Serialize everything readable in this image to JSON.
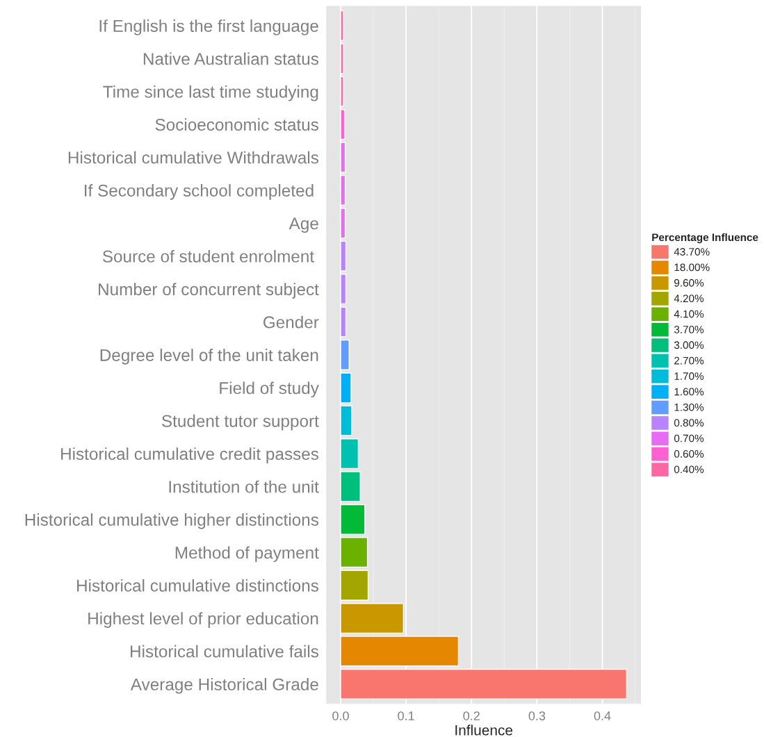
{
  "chart_data": {
    "type": "bar",
    "orientation": "horizontal",
    "xlabel": "Influence",
    "legend_title": "Percentage Influence",
    "legend": "right",
    "grid": "x",
    "categories": [
      "If English is the first language",
      "Native Australian status",
      "Time since last time studying",
      "Socioeconomic status",
      "Historical cumulative Withdrawals",
      "If Secondary school completed ",
      "Age",
      "Source of student enrolment ",
      "Number of concurrent subject",
      "Gender",
      "Degree level of the unit taken",
      "Field of study",
      "Student tutor support",
      "Historical cumulative credit passes",
      "Institution of the unit",
      "Historical cumulative higher distinctions",
      "Method of payment",
      "Historical cumulative distinctions",
      "Highest level of prior education",
      "Historical cumulative fails",
      "Average Historical Grade"
    ],
    "xlim": [
      -0.022,
      0.459
    ],
    "xticks": [
      {
        "value": 0,
        "label": "0.0"
      },
      {
        "value": 0.05,
        "label": null
      },
      0.1,
      {
        "value": 0.15,
        "label": null
      },
      0.2,
      {
        "value": 0.25,
        "label": null
      },
      0.3,
      {
        "value": 0.35,
        "label": null
      },
      0.4,
      {
        "value": 0.45,
        "label": null
      }
    ],
    "series": [
      {
        "name": "43.70%",
        "color": "#F8766D",
        "values": [
          null,
          null,
          null,
          null,
          null,
          null,
          null,
          null,
          null,
          null,
          null,
          null,
          null,
          null,
          null,
          null,
          null,
          null,
          null,
          null,
          0.437
        ]
      },
      {
        "name": "18.00%",
        "color": "#E58700",
        "values": [
          null,
          null,
          null,
          null,
          null,
          null,
          null,
          null,
          null,
          null,
          null,
          null,
          null,
          null,
          null,
          null,
          null,
          null,
          null,
          0.18,
          null
        ]
      },
      {
        "name": "9.60%",
        "color": "#C99800",
        "values": [
          null,
          null,
          null,
          null,
          null,
          null,
          null,
          null,
          null,
          null,
          null,
          null,
          null,
          null,
          null,
          null,
          null,
          null,
          0.096,
          null,
          null
        ]
      },
      {
        "name": "4.20%",
        "color": "#A3A500",
        "values": [
          null,
          null,
          null,
          null,
          null,
          null,
          null,
          null,
          null,
          null,
          null,
          null,
          null,
          null,
          null,
          null,
          null,
          0.042,
          null,
          null,
          null
        ]
      },
      {
        "name": "4.10%",
        "color": "#6BB100",
        "values": [
          null,
          null,
          null,
          null,
          null,
          null,
          null,
          null,
          null,
          null,
          null,
          null,
          null,
          null,
          null,
          null,
          0.041,
          null,
          null,
          null,
          null
        ]
      },
      {
        "name": "3.70%",
        "color": "#00BA38",
        "values": [
          null,
          null,
          null,
          null,
          null,
          null,
          null,
          null,
          null,
          null,
          null,
          null,
          null,
          null,
          null,
          0.037,
          null,
          null,
          null,
          null,
          null
        ]
      },
      {
        "name": "3.00%",
        "color": "#00BF7D",
        "values": [
          null,
          null,
          null,
          null,
          null,
          null,
          null,
          null,
          null,
          null,
          null,
          null,
          null,
          null,
          0.03,
          null,
          null,
          null,
          null,
          null,
          null
        ]
      },
      {
        "name": "2.70%",
        "color": "#00C0AF",
        "values": [
          null,
          null,
          null,
          null,
          null,
          null,
          null,
          null,
          null,
          null,
          null,
          null,
          null,
          0.027,
          null,
          null,
          null,
          null,
          null,
          null,
          null
        ]
      },
      {
        "name": "1.70%",
        "color": "#00BCD8",
        "values": [
          null,
          null,
          null,
          null,
          null,
          null,
          null,
          null,
          null,
          null,
          null,
          null,
          0.017,
          null,
          null,
          null,
          null,
          null,
          null,
          null,
          null
        ]
      },
      {
        "name": "1.60%",
        "color": "#00B0F6",
        "values": [
          null,
          null,
          null,
          null,
          null,
          null,
          null,
          null,
          null,
          null,
          null,
          0.016,
          null,
          null,
          null,
          null,
          null,
          null,
          null,
          null,
          null
        ]
      },
      {
        "name": "1.30%",
        "color": "#619CFF",
        "values": [
          null,
          null,
          null,
          null,
          null,
          null,
          null,
          null,
          null,
          null,
          0.013,
          null,
          null,
          null,
          null,
          null,
          null,
          null,
          null,
          null,
          null
        ]
      },
      {
        "name": "0.80%",
        "color": "#B983FF",
        "values": [
          null,
          null,
          null,
          null,
          null,
          null,
          null,
          0.008,
          0.008,
          0.008,
          null,
          null,
          null,
          null,
          null,
          null,
          null,
          null,
          null,
          null,
          null
        ]
      },
      {
        "name": "0.70%",
        "color": "#E76BF3",
        "values": [
          null,
          null,
          null,
          null,
          0.007,
          0.007,
          0.007,
          null,
          null,
          null,
          null,
          null,
          null,
          null,
          null,
          null,
          null,
          null,
          null,
          null,
          null
        ]
      },
      {
        "name": "0.60%",
        "color": "#FD61D1",
        "values": [
          null,
          null,
          null,
          0.006,
          null,
          null,
          null,
          null,
          null,
          null,
          null,
          null,
          null,
          null,
          null,
          null,
          null,
          null,
          null,
          null,
          null
        ]
      },
      {
        "name": "0.40%",
        "color": "#FF67A4",
        "values": [
          0.004,
          0.004,
          0.004,
          null,
          null,
          null,
          null,
          null,
          null,
          null,
          null,
          null,
          null,
          null,
          null,
          null,
          null,
          null,
          null,
          null,
          null
        ]
      }
    ]
  }
}
